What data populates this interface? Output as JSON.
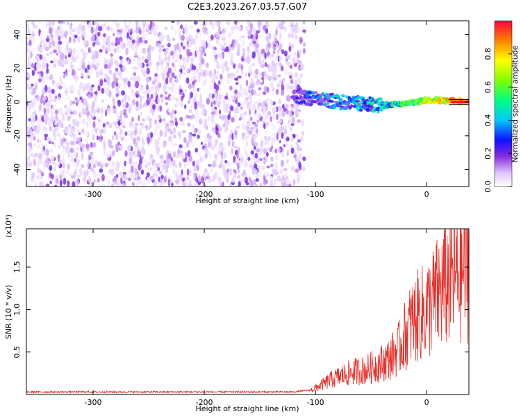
{
  "chart_data": [
    {
      "type": "heatmap",
      "title": "C2E3.2023.267.03.57.G07",
      "xlabel": "Height of straight line (km)",
      "ylabel": "Frequency (Hz)",
      "xlim": [
        -360,
        38
      ],
      "ylim": [
        -50,
        48
      ],
      "x_ticks": [
        -300,
        -200,
        -100,
        0
      ],
      "x_tick_labels": [
        "-300",
        "-200",
        "-100",
        "0"
      ],
      "y_ticks": [
        -40,
        -20,
        0,
        20,
        40
      ],
      "y_tick_labels": [
        "-40",
        "-20",
        "0",
        "20",
        "40"
      ],
      "colorbar": {
        "label": "Normalized spectral amplitude",
        "range": [
          0,
          1
        ],
        "ticks": [
          0.0,
          0.2,
          0.4,
          0.6,
          0.8
        ],
        "tick_labels": [
          "0.0",
          "0.2",
          "0.4",
          "0.6",
          "0.8"
        ]
      },
      "noise_region": {
        "x_range": [
          -360,
          -110
        ],
        "f_range": [
          -50,
          48
        ],
        "amplitude": [
          0.02,
          0.25
        ]
      },
      "signal_track": [
        {
          "x": -120,
          "f": 3,
          "amplitude": 0.3
        },
        {
          "x": -100,
          "f": 2,
          "amplitude": 0.4
        },
        {
          "x": -80,
          "f": 0,
          "amplitude": 0.45
        },
        {
          "x": -60,
          "f": -1,
          "amplitude": 0.5
        },
        {
          "x": -40,
          "f": -2,
          "amplitude": 0.55
        },
        {
          "x": -20,
          "f": -1,
          "amplitude": 0.7
        },
        {
          "x": 0,
          "f": 1,
          "amplitude": 0.85
        },
        {
          "x": 20,
          "f": 1,
          "amplitude": 0.95
        },
        {
          "x": 38,
          "f": 0,
          "amplitude": 1.0
        }
      ],
      "grid": false
    },
    {
      "type": "line",
      "xlabel": "Height of straight line (km)",
      "ylabel": "SNR (10 * v/v)",
      "y_multiplier": "(x10⁴)",
      "xlim": [
        -360,
        38
      ],
      "ylim": [
        0,
        1.95
      ],
      "x_ticks": [
        -300,
        -200,
        -100,
        0
      ],
      "x_tick_labels": [
        "-300",
        "-200",
        "-100",
        "0"
      ],
      "y_ticks": [
        0.5,
        1.0,
        1.5
      ],
      "y_tick_labels": [
        "0.5",
        "1.0",
        "1.5"
      ],
      "series": [
        {
          "color": "#e8302a",
          "x": [
            -360,
            -300,
            -250,
            -200,
            -150,
            -120,
            -105,
            -95,
            -85,
            -75,
            -65,
            -55,
            -45,
            -35,
            -25,
            -20,
            -15,
            -10,
            -5,
            0,
            5,
            10,
            15,
            20,
            25,
            30,
            38
          ],
          "y": [
            0.03,
            0.03,
            0.03,
            0.03,
            0.03,
            0.03,
            0.05,
            0.12,
            0.2,
            0.25,
            0.3,
            0.32,
            0.38,
            0.45,
            0.6,
            0.75,
            0.9,
            1.0,
            1.05,
            1.1,
            1.2,
            1.3,
            1.4,
            1.5,
            1.55,
            1.6,
            1.7
          ]
        }
      ],
      "grid": false
    }
  ]
}
